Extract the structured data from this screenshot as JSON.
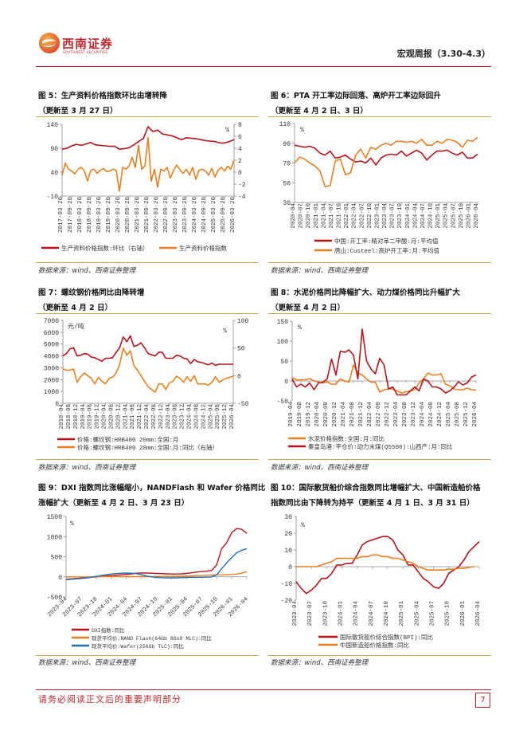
{
  "header": {
    "brand": "西南证券",
    "brand_en": "SOUTHWEST SECURITIES",
    "report_title": "宏观周报（3.30-4.3）"
  },
  "footer": {
    "note": "请务必阅读正文后的重要声明部分",
    "page": "7"
  },
  "colors": {
    "brand_red": "#c0282d",
    "series_red": "#b8121b",
    "series_orange": "#e8801f",
    "series_blue": "#1f6fb5",
    "rule_gold": "#c9a64c"
  },
  "chart_data": [
    {
      "type": "line",
      "title": "图 5：生产资料价格指数环比由增转降",
      "subtitle": "（更新至 3 月 27 日）",
      "source": "数据来源：wind、西南证券整理",
      "xlim": [
        "2017-03",
        "2026-03"
      ],
      "x_ticks": [
        "2017-03-20",
        "2017-09-20",
        "2018-03-20",
        "2018-09-20",
        "2019-03-20",
        "2019-09-20",
        "2020-03-20",
        "2020-09-20",
        "2021-03-20",
        "2021-09-20",
        "2022-03-20",
        "2022-09-20",
        "2023-03-20",
        "2023-09-20",
        "2024-03-20",
        "2024-09-20",
        "2025-03-20",
        "2025-09-20",
        "2026-03-20"
      ],
      "y_left": {
        "ticks": [
          -10,
          40,
          90,
          140
        ],
        "range": [
          -10,
          140
        ],
        "unit": ""
      },
      "y_right": {
        "ticks": [
          -4,
          -2,
          0,
          2,
          4,
          6,
          8
        ],
        "range": [
          -4,
          8
        ],
        "unit": "%"
      },
      "series": [
        {
          "name": "生产资料价格指数:环比（右轴）",
          "color": "#b8121b",
          "axis": "left",
          "values": [
            88,
            90,
            95,
            98,
            96,
            99,
            102,
            97,
            96,
            95,
            94,
            94,
            88,
            89,
            91,
            97,
            104,
            110,
            135,
            125,
            128,
            120,
            118,
            116,
            112,
            108,
            112,
            111,
            110,
            108,
            106,
            105,
            104,
            101,
            101,
            104,
            108
          ]
        },
        {
          "name": "生产资料价格指数",
          "color": "#e8801f",
          "axis": "right",
          "values": [
            -0.5,
            1.5,
            0.5,
            0.2,
            -0.3,
            0.5,
            0.8,
            0.2,
            -1.5,
            0.3,
            0.5,
            -0.2,
            0.3,
            0.6,
            0.1,
            0.2,
            0.5,
            0.3,
            -3.2,
            0.8,
            0.5,
            1.0,
            2.5,
            0.8,
            4.5,
            0.5,
            1.0,
            5.8,
            -1.5,
            0.5,
            -2.5,
            0.5,
            0.2,
            0.8,
            -1.0,
            0.3,
            1.2,
            0.4,
            -0.2,
            0.5,
            -0.5,
            0.8,
            -1.2,
            0.3,
            0.5,
            0.2,
            -0.5,
            0.6,
            -0.8,
            0.3,
            0.8,
            0.2,
            1.0,
            0.5,
            2.0
          ]
        }
      ]
    },
    {
      "type": "line",
      "title": "图 6：PTA 开工率边际回落、高炉开工率边际回升",
      "subtitle": "（更新至 4 月 2 日、3 日）",
      "source": "数据来源：wind、西南证券整理",
      "xlim": [
        "2020-04",
        "2026-04"
      ],
      "x_ticks": [
        "2020-04",
        "2020-07",
        "2020-10",
        "2021-01",
        "2021-04",
        "2021-07",
        "2021-10",
        "2022-01",
        "2022-04",
        "2022-07",
        "2022-10",
        "2023-01",
        "2023-04",
        "2023-07",
        "2023-10",
        "2024-01",
        "2024-04",
        "2024-07",
        "2024-10",
        "2025-01",
        "2025-04",
        "2025-07",
        "2025-10",
        "2026-01",
        "2026-04"
      ],
      "y_left": {
        "ticks": [
          30,
          50,
          70,
          90,
          110
        ],
        "range": [
          30,
          110
        ],
        "unit": "%"
      },
      "series": [
        {
          "name": "中国:开工率:精对苯二甲酸:月:平均值",
          "color": "#b8121b",
          "axis": "left",
          "values": [
            88,
            87,
            86,
            87,
            85,
            80,
            78,
            82,
            75,
            76,
            78,
            74,
            71,
            72,
            70,
            75,
            68,
            75,
            78,
            79,
            78,
            82,
            77,
            80,
            83,
            80,
            73,
            78,
            82,
            82,
            83,
            80,
            78,
            81,
            75,
            75,
            79
          ]
        },
        {
          "name": "唐山:Custeel:高炉开工率:月:平均值",
          "color": "#e8801f",
          "axis": "left",
          "values": [
            70,
            76,
            74,
            70,
            67,
            62,
            46,
            47,
            72,
            74,
            58,
            60,
            78,
            84,
            75,
            86,
            84,
            88,
            90,
            88,
            92,
            92,
            91,
            92,
            90,
            94,
            88,
            88,
            92,
            90,
            94,
            93,
            91,
            86,
            93,
            92,
            96
          ]
        }
      ]
    },
    {
      "type": "line",
      "title": "图 7：螺纹钢价格同比由降转增",
      "subtitle": "（更新至 4 月 2 日）",
      "source": "数据来源：wind、西南证券整理",
      "xlim": [
        "2018-04",
        "2026-04"
      ],
      "x_ticks": [
        "2018-04",
        "2018-08",
        "2018-12",
        "2019-04",
        "2019-08",
        "2019-12",
        "2020-04",
        "2020-08",
        "2020-12",
        "2021-04",
        "2021-08",
        "2021-12",
        "2022-04",
        "2022-08",
        "2022-12",
        "2023-04",
        "2023-08",
        "2023-12",
        "2024-04",
        "2024-08",
        "2024-12",
        "2025-04",
        "2025-08",
        "2025-12",
        "2026-04"
      ],
      "y_left": {
        "ticks": [
          0,
          1000,
          2000,
          3000,
          4000,
          5000,
          6000,
          7000
        ],
        "range": [
          0,
          7000
        ],
        "unit": "元/吨"
      },
      "y_right": {
        "ticks": [
          -50,
          0,
          50,
          100
        ],
        "range": [
          -50,
          100
        ],
        "unit": "%"
      },
      "series": [
        {
          "name": "价格:螺纹钢:HRB400 20mm:全国:月",
          "color": "#b8121b",
          "axis": "left",
          "values": [
            4000,
            4200,
            4600,
            4700,
            4000,
            4050,
            4200,
            4150,
            3900,
            3850,
            3700,
            3550,
            3800,
            3800,
            3850,
            4300,
            4700,
            5600,
            5200,
            5700,
            4800,
            4900,
            5100,
            4700,
            4200,
            4100,
            4000,
            4300,
            4300,
            3800,
            3800,
            3800,
            4050,
            4000,
            3800,
            3750,
            3350,
            3700,
            3500,
            3450,
            3350,
            3250,
            3400,
            3200,
            3300,
            3300,
            3300,
            3300,
            3300
          ]
        },
        {
          "name": "价格:螺纹钢:HRB400 20mm:全国:月:同比（右轴）",
          "color": "#e8801f",
          "axis": "right",
          "values": [
            12,
            10,
            10,
            12,
            -12,
            -2,
            5,
            0,
            -5,
            -15,
            -3,
            -10,
            -15,
            -5,
            -3,
            5,
            20,
            50,
            37,
            45,
            18,
            10,
            0,
            -10,
            -20,
            -25,
            -30,
            -15,
            -15,
            -25,
            -13,
            -10,
            -1,
            -5,
            -12,
            -2,
            -10,
            0,
            -15,
            -15,
            -15,
            -17,
            -12,
            -2,
            -12,
            -8,
            -5,
            -3,
            -1
          ]
        }
      ]
    },
    {
      "type": "line",
      "title": "图 8：水泥价格同比降幅扩大、动力煤价格同比升幅扩大",
      "subtitle": "（更新至 4 月 2 日）",
      "source": "数据来源：wind、西南证券整理",
      "xlim": [
        "2019-04",
        "2026-04"
      ],
      "x_ticks": [
        "2019-04",
        "2019-08",
        "2019-12",
        "2020-04",
        "2020-08",
        "2020-12",
        "2021-04",
        "2021-08",
        "2021-12",
        "2022-04",
        "2022-08",
        "2022-12",
        "2023-04",
        "2023-08",
        "2023-12",
        "2024-04",
        "2024-08",
        "2024-12",
        "2025-04",
        "2025-08",
        "2025-12",
        "2026-04"
      ],
      "y_left": {
        "ticks": [
          -50,
          0,
          50,
          100,
          150
        ],
        "range": [
          -50,
          150
        ],
        "unit": "%"
      },
      "series": [
        {
          "name": "水泥价格指数:全国:月:同比",
          "color": "#e8801f",
          "axis": "left",
          "values": [
            8,
            3,
            3,
            3,
            6,
            0,
            -3,
            -5,
            -2,
            -8,
            -8,
            5,
            0,
            -3,
            40,
            20,
            15,
            5,
            -3,
            -3,
            -28,
            -22,
            -20,
            -20,
            -25,
            -30,
            -27,
            -25,
            -22,
            -5,
            5,
            20,
            15,
            15,
            18,
            -8,
            -12,
            -20,
            -22,
            -22,
            -18,
            -22,
            -23
          ]
        },
        {
          "name": "秦皇岛港:平仓价:动力末煤(Q5500):山西产:月:同比",
          "color": "#b8121b",
          "axis": "left",
          "values": [
            5,
            -15,
            -8,
            -15,
            -5,
            -22,
            -5,
            -3,
            5,
            55,
            15,
            75,
            72,
            78,
            65,
            5,
            130,
            50,
            30,
            18,
            57,
            40,
            -20,
            -15,
            -35,
            -35,
            -35,
            -25,
            -15,
            -25,
            5,
            0,
            -15,
            -15,
            -20,
            -30,
            -25,
            -15,
            -2,
            -10,
            -5,
            10,
            15
          ]
        }
      ]
    },
    {
      "type": "line",
      "title": "图 9：DXI 指数同比涨幅缩小，NANDFlash 和 Wafer 价格同比",
      "title2": "涨幅扩大（更新至 4 月 2 日、3 月 23 日）",
      "source": "数据来源：wind、西南证券整理",
      "xlim": [
        "2023-04",
        "2026-04"
      ],
      "x_ticks": [
        "2023-04",
        "2023-07",
        "2023-10",
        "2024-01",
        "2024-04",
        "2024-07",
        "2024-10",
        "2025-01",
        "2025-04",
        "2025-07",
        "2025-10",
        "2026-01",
        "2026-04"
      ],
      "y_left": {
        "ticks": [
          -500,
          0,
          500,
          1000,
          1500
        ],
        "range": [
          -500,
          1500
        ],
        "unit": "%"
      },
      "series": [
        {
          "name": "DXI指数:同比",
          "color": "#b8121b",
          "axis": "left",
          "values": [
            -60,
            -50,
            -40,
            -30,
            -20,
            -10,
            0,
            10,
            20,
            30,
            40,
            50,
            60,
            75,
            90,
            95,
            95,
            90,
            85,
            80,
            75,
            70,
            70,
            75,
            85,
            100,
            120,
            130,
            140,
            160,
            300,
            700,
            850,
            1100,
            1200,
            1180,
            1080
          ]
        },
        {
          "name": "现货平均价:NAND Flash(64Gb 8Gx8 MLC):同比",
          "color": "#e8801f",
          "axis": "left",
          "values": [
            0,
            0,
            0,
            0,
            0,
            0,
            5,
            5,
            5,
            5,
            5,
            5,
            5,
            5,
            5,
            5,
            5,
            5,
            10,
            10,
            10,
            10,
            15,
            15,
            20,
            25,
            30,
            35,
            40,
            45,
            50,
            50,
            55,
            60,
            70,
            90,
            130
          ]
        },
        {
          "name": "现货平均价:Wafer(256Gb TLC):同比",
          "color": "#1f6fb5",
          "axis": "left",
          "values": [
            -70,
            -60,
            -50,
            -40,
            -30,
            -10,
            10,
            30,
            50,
            70,
            80,
            90,
            95,
            90,
            80,
            50,
            20,
            0,
            -10,
            -20,
            -25,
            -25,
            -25,
            -20,
            -15,
            -10,
            -10,
            -10,
            -5,
            0,
            50,
            200,
            350,
            480,
            600,
            660,
            700
          ]
        }
      ]
    },
    {
      "type": "line",
      "title": "图 10：国际散货船价综合指数同比增幅扩大、中国新造船价格",
      "title2": "指数同比由下降转为持平（更新至 4 月 1 日、3 月 31 日）",
      "source": "数据来源：wind、西南证券整理",
      "xlim": [
        "2023-04",
        "2026-04"
      ],
      "x_ticks": [
        "2023-04",
        "2023-07",
        "2023-10",
        "2024-01",
        "2024-04",
        "2024-07",
        "2024-10",
        "2025-01",
        "2025-04",
        "2025-07",
        "2025-10",
        "2026-01",
        "2026-04"
      ],
      "y_left": {
        "ticks": [
          -20,
          -10,
          0,
          10,
          20,
          30
        ],
        "range": [
          -20,
          30
        ],
        "unit": "%"
      },
      "series": [
        {
          "name": "国际散货船价综合指数(BPI):同比",
          "color": "#b8121b",
          "axis": "left",
          "values": [
            -9,
            -13,
            -16,
            -14,
            -11,
            -7,
            -7,
            -4,
            1,
            1,
            2,
            2,
            7,
            13,
            15,
            16,
            17,
            18,
            18,
            16,
            10,
            7,
            1,
            1,
            -3,
            -7,
            -9,
            -12,
            -13,
            -10,
            -4,
            -2,
            0,
            4,
            9,
            12,
            15
          ]
        },
        {
          "name": "中国新造船价格指数:同比",
          "color": "#e8801f",
          "axis": "left",
          "end": "2026-03",
          "values": [
            0,
            0,
            0,
            0,
            0,
            1,
            2,
            3,
            5,
            5,
            5,
            5,
            5,
            6,
            6,
            7,
            7,
            6,
            6,
            5,
            5,
            4,
            3,
            2,
            0,
            -1,
            -2,
            -2,
            -2,
            -2,
            -1.5,
            -1.5,
            -1,
            -1,
            -0.5,
            0
          ]
        }
      ]
    }
  ]
}
